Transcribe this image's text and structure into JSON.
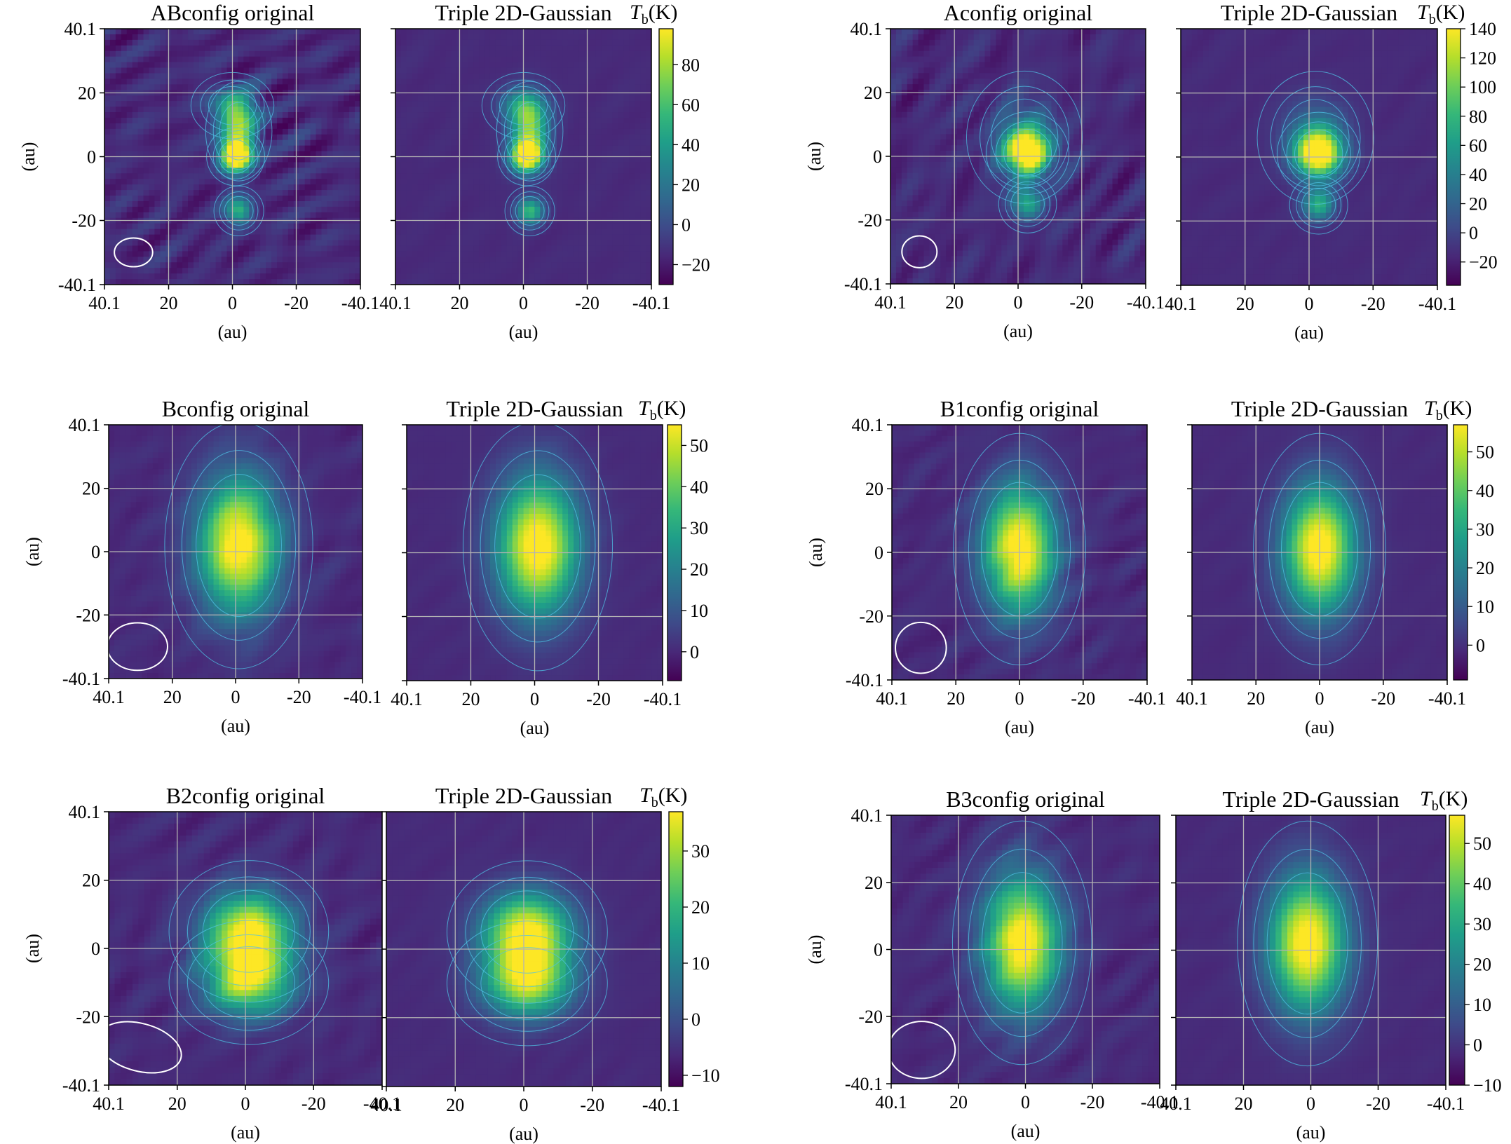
{
  "colors": {
    "grid": "#b3b3b3",
    "contour": "#4fc3e6",
    "beam": "#ffffff",
    "colormap": [
      "#440154",
      "#482878",
      "#3e4a89",
      "#31688e",
      "#26828e",
      "#1f9e89",
      "#35b779",
      "#6ece58",
      "#b5de2b",
      "#fde725"
    ]
  },
  "common": {
    "axis_label": "(au)",
    "tick_labels": [
      "40.1",
      "20",
      "0",
      "-20",
      "-40.1"
    ],
    "axis_values": [
      40.1,
      20,
      0,
      -20,
      -40.1
    ],
    "axis_range": [
      40.1,
      -40.1
    ],
    "colorbar_label_symbol": "T",
    "colorbar_label_sub": "b",
    "colorbar_label_unit": "(K)"
  },
  "chart_data": [
    {
      "type": "heatmap",
      "title": "ABconfig original",
      "xlabel": "(au)",
      "ylabel": "(au)",
      "xlim": [
        40.1,
        -40.1
      ],
      "ylim": [
        -40.1,
        40.1
      ],
      "colorbar_range": [
        -30,
        98
      ],
      "colorbar_ticks": [
        80,
        60,
        40,
        20,
        0,
        -20
      ],
      "beam": {
        "center_x": 31,
        "center_y": -30,
        "major_au": 12,
        "minor_au": 9,
        "pa_deg": 0
      },
      "noise": 0.32,
      "blobs": [
        [
          -2,
          8,
          4,
          6,
          0.65
        ],
        [
          -1,
          0,
          3.5,
          3.5,
          0.95
        ],
        [
          -2,
          -17,
          3,
          3,
          0.55
        ],
        [
          0,
          16,
          5,
          4,
          0.4
        ]
      ]
    },
    {
      "type": "heatmap",
      "title": "Triple 2D-Gaussian",
      "xlabel": "(au)",
      "ylabel": "",
      "xlim": [
        40.1,
        -40.1
      ],
      "ylim": [
        -40.1,
        40.1
      ],
      "colorbar_range": [
        -30,
        98
      ],
      "colorbar_ticks": [
        80,
        60,
        40,
        20,
        0,
        -20
      ],
      "noise": 0.05,
      "blobs": [
        [
          -2,
          8,
          4,
          6,
          0.65
        ],
        [
          -1,
          0,
          3.5,
          3.5,
          0.95
        ],
        [
          -2,
          -17,
          3,
          3,
          0.55
        ],
        [
          0,
          16,
          5,
          4,
          0.4
        ]
      ]
    },
    {
      "type": "heatmap",
      "title": "Aconfig original",
      "xlabel": "(au)",
      "ylabel": "(au)",
      "xlim": [
        40.1,
        -40.1
      ],
      "ylim": [
        -40.1,
        40.1
      ],
      "colorbar_range": [
        -36,
        140
      ],
      "colorbar_ticks": [
        140,
        120,
        100,
        80,
        60,
        40,
        20,
        0,
        -20
      ],
      "beam": {
        "center_x": 31,
        "center_y": -30,
        "major_au": 11,
        "minor_au": 10,
        "pa_deg": 0
      },
      "noise": 0.28,
      "blobs": [
        [
          -3,
          1,
          5,
          5,
          0.9
        ],
        [
          -3,
          -15,
          3.5,
          3.5,
          0.5
        ],
        [
          -2,
          6,
          7,
          8,
          0.3
        ]
      ]
    },
    {
      "type": "heatmap",
      "title": "Triple 2D-Gaussian",
      "xlabel": "(au)",
      "ylabel": "",
      "xlim": [
        40.1,
        -40.1
      ],
      "ylim": [
        -40.1,
        40.1
      ],
      "colorbar_range": [
        -36,
        140
      ],
      "colorbar_ticks": [
        140,
        120,
        100,
        80,
        60,
        40,
        20,
        0,
        -20
      ],
      "noise": 0.05,
      "blobs": [
        [
          -3,
          1,
          5,
          5,
          0.9
        ],
        [
          -3,
          -15,
          3.5,
          3.5,
          0.5
        ],
        [
          -2,
          6,
          7,
          8,
          0.3
        ]
      ]
    },
    {
      "type": "heatmap",
      "title": "Bconfig original",
      "xlabel": "(au)",
      "ylabel": "(au)",
      "xlim": [
        40.1,
        -40.1
      ],
      "ylim": [
        -40.1,
        40.1
      ],
      "colorbar_range": [
        -7,
        55
      ],
      "colorbar_ticks": [
        50,
        40,
        30,
        20,
        10,
        0
      ],
      "beam": {
        "center_x": 31,
        "center_y": -30,
        "major_au": 19,
        "minor_au": 15,
        "pa_deg": 0
      },
      "noise": 0.14,
      "blobs": [
        [
          -1,
          2,
          9,
          15,
          0.95
        ]
      ]
    },
    {
      "type": "heatmap",
      "title": "Triple 2D-Gaussian",
      "xlabel": "(au)",
      "ylabel": "",
      "xlim": [
        40.1,
        -40.1
      ],
      "ylim": [
        -40.1,
        40.1
      ],
      "colorbar_range": [
        -7,
        55
      ],
      "colorbar_ticks": [
        50,
        40,
        30,
        20,
        10,
        0
      ],
      "noise": 0.04,
      "blobs": [
        [
          -1,
          2,
          9,
          15,
          0.95
        ]
      ]
    },
    {
      "type": "heatmap",
      "title": "B1config original",
      "xlabel": "(au)",
      "ylabel": "(au)",
      "xlim": [
        40.1,
        -40.1
      ],
      "ylim": [
        -40.1,
        40.1
      ],
      "colorbar_range": [
        -9,
        57
      ],
      "colorbar_ticks": [
        50,
        40,
        30,
        20,
        10,
        0
      ],
      "beam": {
        "center_x": 31,
        "center_y": -30,
        "major_au": 16,
        "minor_au": 16,
        "pa_deg": 0
      },
      "noise": 0.15,
      "blobs": [
        [
          0,
          1,
          8,
          14,
          0.95
        ]
      ]
    },
    {
      "type": "heatmap",
      "title": "Triple 2D-Gaussian",
      "xlabel": "(au)",
      "ylabel": "",
      "xlim": [
        40.1,
        -40.1
      ],
      "ylim": [
        -40.1,
        40.1
      ],
      "colorbar_range": [
        -9,
        57
      ],
      "colorbar_ticks": [
        50,
        40,
        30,
        20,
        10,
        0
      ],
      "noise": 0.04,
      "blobs": [
        [
          0,
          1,
          8,
          14,
          0.95
        ]
      ]
    },
    {
      "type": "heatmap",
      "title": "B2config original",
      "xlabel": "(au)",
      "ylabel": "(au)",
      "xlim": [
        40.1,
        -40.1
      ],
      "ylim": [
        -40.1,
        40.1
      ],
      "colorbar_range": [
        -12,
        37
      ],
      "colorbar_ticks": [
        30,
        20,
        10,
        0,
        -10
      ],
      "beam": {
        "center_x": 31,
        "center_y": -29,
        "major_au": 25,
        "minor_au": 14,
        "pa_deg": 15
      },
      "noise": 0.16,
      "blobs": [
        [
          -1,
          5,
          9,
          8,
          0.9
        ],
        [
          -1,
          -10,
          9,
          7,
          0.75
        ]
      ]
    },
    {
      "type": "heatmap",
      "title": "Triple 2D-Gaussian",
      "xlabel": "(au)",
      "ylabel": "",
      "xlim": [
        40.1,
        -40.1
      ],
      "ylim": [
        -40.1,
        40.1
      ],
      "colorbar_range": [
        -12,
        37
      ],
      "colorbar_ticks": [
        30,
        20,
        10,
        0,
        -10
      ],
      "noise": 0.04,
      "blobs": [
        [
          -1,
          5,
          9,
          8,
          0.9
        ],
        [
          -1,
          -10,
          9,
          7,
          0.75
        ]
      ]
    },
    {
      "type": "heatmap",
      "title": "B3config original",
      "xlabel": "(au)",
      "ylabel": "(au)",
      "xlim": [
        40.1,
        -40.1
      ],
      "ylim": [
        -40.1,
        40.1
      ],
      "colorbar_range": [
        -10,
        57
      ],
      "colorbar_ticks": [
        50,
        40,
        30,
        20,
        10,
        0,
        -10
      ],
      "beam": {
        "center_x": 31,
        "center_y": -30,
        "major_au": 20,
        "minor_au": 17,
        "pa_deg": 0
      },
      "noise": 0.15,
      "blobs": [
        [
          1,
          2,
          8,
          14,
          0.95
        ]
      ]
    },
    {
      "type": "heatmap",
      "title": "Triple 2D-Gaussian",
      "xlabel": "(au)",
      "ylabel": "",
      "xlim": [
        40.1,
        -40.1
      ],
      "ylim": [
        -40.1,
        40.1
      ],
      "colorbar_range": [
        -10,
        57
      ],
      "colorbar_ticks": [
        50,
        40,
        30,
        20,
        10,
        0,
        -10
      ],
      "noise": 0.04,
      "blobs": [
        [
          1,
          2,
          8,
          14,
          0.95
        ]
      ]
    }
  ]
}
